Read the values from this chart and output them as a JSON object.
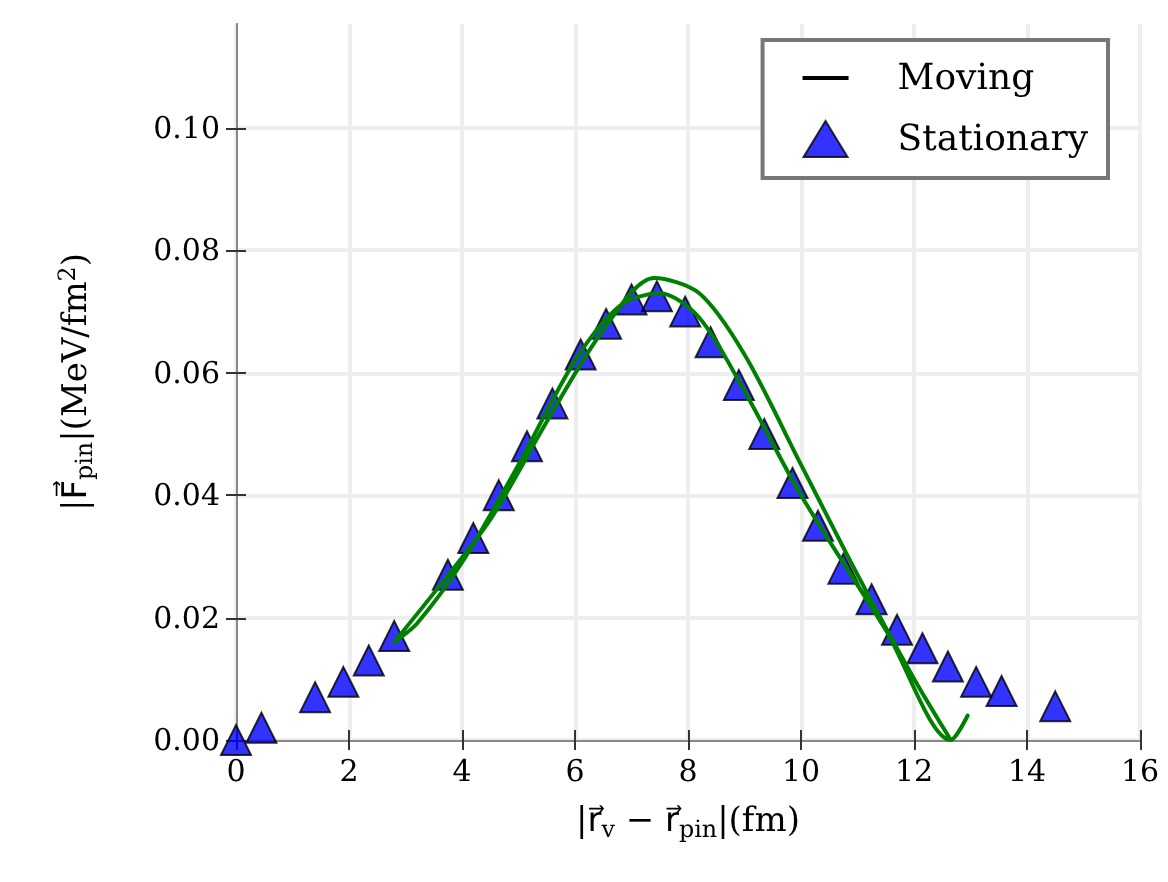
{
  "chart_data": {
    "type": "scatter",
    "xlabel": "|r⃗$_{v}$ − r⃗$_{pin}$|(fm)",
    "ylabel": "|F⃗$_{pin}$|(MeV/fm$^{2}$)",
    "xlim": [
      0,
      16
    ],
    "xticks": [
      0,
      2,
      4,
      6,
      8,
      10,
      12,
      14,
      16
    ],
    "ylim": [
      0,
      0.117
    ],
    "yticks": [
      {
        "value": 0,
        "label": "0.00"
      },
      {
        "value": 0.02,
        "label": "0.02"
      },
      {
        "value": 0.04,
        "label": "0.04"
      },
      {
        "value": 0.06,
        "label": "0.06"
      },
      {
        "value": 0.08,
        "label": "0.08"
      },
      {
        "value": 0.1,
        "label": "0.10"
      }
    ],
    "grid": true,
    "legend": "top right",
    "series": [
      {
        "name": "Moving",
        "type": "line",
        "color": "#008000",
        "line_style": "solid",
        "marker": "none",
        "x": [
          12.95,
          12.65,
          11.5,
          10,
          9,
          8.2,
          7.5,
          6.8,
          6,
          5,
          4,
          3.2,
          2.8,
          3.5,
          4.5,
          5.5,
          6.5,
          7.4,
          8.2,
          9,
          10,
          11,
          12,
          12.65
        ],
        "values": [
          0.004,
          0,
          0.018,
          0.04,
          0.057,
          0.069,
          0.073,
          0.071,
          0.062,
          0.045,
          0.029,
          0.019,
          0.016,
          0.024,
          0.036,
          0.052,
          0.067,
          0.0755,
          0.073,
          0.063,
          0.045,
          0.027,
          0.01,
          0
        ]
      },
      {
        "name": "Stationary",
        "color": "#0000ff",
        "marker": "triangle",
        "x": [
          0,
          0.45,
          1.4,
          1.9,
          2.35,
          2.8,
          3.75,
          4.2,
          4.65,
          5.15,
          5.6,
          6.1,
          6.55,
          7.0,
          7.45,
          7.95,
          8.4,
          8.9,
          9.35,
          9.85,
          10.3,
          10.75,
          11.25,
          11.7,
          12.15,
          12.6,
          13.1,
          13.55,
          14.5
        ],
        "values": [
          0,
          0.002,
          0.007,
          0.0095,
          0.013,
          0.017,
          0.027,
          0.033,
          0.04,
          0.048,
          0.055,
          0.063,
          0.068,
          0.072,
          0.0725,
          0.07,
          0.065,
          0.058,
          0.05,
          0.042,
          0.035,
          0.028,
          0.023,
          0.018,
          0.015,
          0.012,
          0.0095,
          0.008,
          0.0055
        ]
      }
    ]
  }
}
